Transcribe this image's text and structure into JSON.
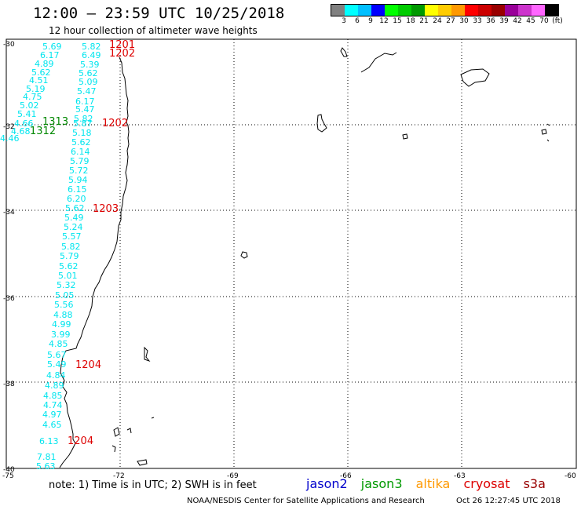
{
  "title": "12:00 – 23:59 UTC 10/25/2018",
  "subtitle": "12 hour collection of altimeter wave heights",
  "scale": {
    "colors": [
      "#808080",
      "#00ffff",
      "#00bfff",
      "#0000ff",
      "#00ff00",
      "#00cc00",
      "#009900",
      "#ffff00",
      "#ffcc00",
      "#ff9900",
      "#ff0000",
      "#cc0000",
      "#990000",
      "#990099",
      "#cc33cc",
      "#ff66ff",
      "#000000"
    ],
    "labels": [
      "3",
      "6",
      "9",
      "12",
      "15",
      "18",
      "21",
      "24",
      "27",
      "30",
      "33",
      "36",
      "39",
      "42",
      "45",
      "70",
      "(ft)"
    ]
  },
  "lat_labels": [
    "-30",
    "-32",
    "-34",
    "-36",
    "-38",
    "-40"
  ],
  "lon_labels": [
    "-75",
    "-72",
    "-69",
    "-66",
    "-63",
    "-60"
  ],
  "observation_colors": {
    "cyan": "#00e5ee",
    "green": "#008800",
    "red": "#dd0000"
  },
  "observations": [
    {
      "text": "5.69",
      "c": "cyan"
    },
    {
      "text": "5.82",
      "c": "cyan"
    },
    {
      "text": "6.17",
      "c": "cyan"
    },
    {
      "text": "6.49",
      "c": "cyan"
    },
    {
      "text": "4.89",
      "c": "cyan"
    },
    {
      "text": "5.39",
      "c": "cyan"
    },
    {
      "text": "5.62",
      "c": "cyan"
    },
    {
      "text": "5.62",
      "c": "cyan"
    },
    {
      "text": "4.51",
      "c": "cyan"
    },
    {
      "text": "5.09",
      "c": "cyan"
    },
    {
      "text": "5.19",
      "c": "cyan"
    },
    {
      "text": "5.47",
      "c": "cyan"
    },
    {
      "text": "4.75",
      "c": "cyan"
    },
    {
      "text": "6.17",
      "c": "cyan"
    },
    {
      "text": "5.02",
      "c": "cyan"
    },
    {
      "text": "5.47",
      "c": "cyan"
    },
    {
      "text": "5.41",
      "c": "cyan"
    },
    {
      "text": "5.82",
      "c": "cyan"
    },
    {
      "text": "4.66",
      "c": "cyan"
    },
    {
      "text": "5.87",
      "c": "cyan"
    },
    {
      "text": "4.68",
      "c": "cyan"
    },
    {
      "text": "4.46",
      "c": "cyan"
    },
    {
      "text": "5.18",
      "c": "cyan"
    },
    {
      "text": "5.62",
      "c": "cyan"
    },
    {
      "text": "6.14",
      "c": "cyan"
    },
    {
      "text": "5.79",
      "c": "cyan"
    },
    {
      "text": "5.72",
      "c": "cyan"
    },
    {
      "text": "5.94",
      "c": "cyan"
    },
    {
      "text": "6.15",
      "c": "cyan"
    },
    {
      "text": "6.20",
      "c": "cyan"
    },
    {
      "text": "5.62",
      "c": "cyan"
    },
    {
      "text": "5.49",
      "c": "cyan"
    },
    {
      "text": "5.24",
      "c": "cyan"
    },
    {
      "text": "5.57",
      "c": "cyan"
    },
    {
      "text": "5.82",
      "c": "cyan"
    },
    {
      "text": "5.79",
      "c": "cyan"
    },
    {
      "text": "5.62",
      "c": "cyan"
    },
    {
      "text": "5.01",
      "c": "cyan"
    },
    {
      "text": "5.32",
      "c": "cyan"
    },
    {
      "text": "5.05",
      "c": "cyan"
    },
    {
      "text": "5.56",
      "c": "cyan"
    },
    {
      "text": "4.88",
      "c": "cyan"
    },
    {
      "text": "4.99",
      "c": "cyan"
    },
    {
      "text": "3.99",
      "c": "cyan"
    },
    {
      "text": "4.85",
      "c": "cyan"
    },
    {
      "text": "5.67",
      "c": "cyan"
    },
    {
      "text": "5.49",
      "c": "cyan"
    },
    {
      "text": "4.84",
      "c": "cyan"
    },
    {
      "text": "4.89",
      "c": "cyan"
    },
    {
      "text": "4.85",
      "c": "cyan"
    },
    {
      "text": "4.74",
      "c": "cyan"
    },
    {
      "text": "4.97",
      "c": "cyan"
    },
    {
      "text": "4.65",
      "c": "cyan"
    },
    {
      "text": "6.13",
      "c": "cyan"
    },
    {
      "text": "7.81",
      "c": "cyan"
    },
    {
      "text": "5.63",
      "c": "cyan"
    }
  ],
  "markers": [
    {
      "text": "1201",
      "c": "red"
    },
    {
      "text": "1202",
      "c": "red"
    },
    {
      "text": "1313",
      "c": "green"
    },
    {
      "text": "1312",
      "c": "green"
    },
    {
      "text": "1202",
      "c": "red"
    },
    {
      "text": "1203",
      "c": "red"
    },
    {
      "text": "1204",
      "c": "red"
    },
    {
      "text": "1204",
      "c": "red"
    }
  ],
  "note": "note:  1) Time is in UTC;  2) SWH is in feet",
  "legend": [
    {
      "name": "jason2",
      "color": "#0000cc"
    },
    {
      "name": "jason3",
      "color": "#009900"
    },
    {
      "name": "altika",
      "color": "#ff9900"
    },
    {
      "name": "cryosat",
      "color": "#dd0000"
    },
    {
      "name": "s3a",
      "color": "#990000"
    }
  ],
  "credit": "NOAA/NESDIS Center for Satellite Applications and Research",
  "timestamp": "Oct 26 12:27:45 UTC 2018"
}
